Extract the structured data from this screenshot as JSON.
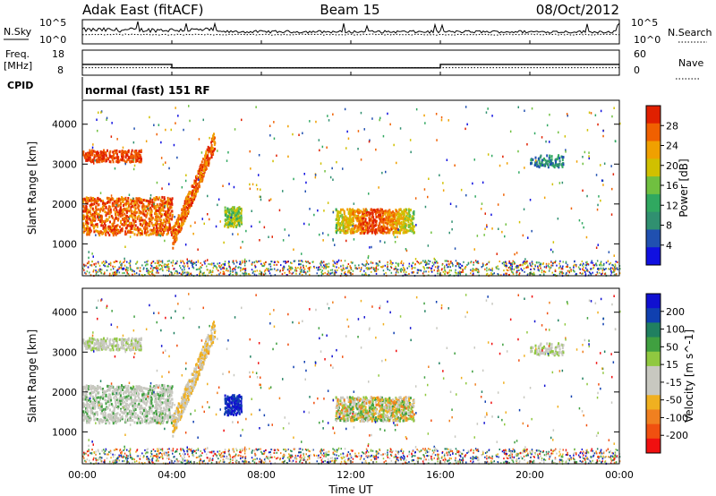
{
  "header": {
    "station": "Adak East (fitACF)",
    "beam": "Beam 15",
    "date": "08/Oct/2012"
  },
  "colors": {
    "power": [
      "#1010e0",
      "#2050b0",
      "#309070",
      "#30a860",
      "#70c040",
      "#d0c000",
      "#f0a000",
      "#f06000",
      "#e02000"
    ],
    "velocity": [
      "#f01010",
      "#f05010",
      "#f08020",
      "#f0b020",
      "#c8c8c0",
      "#c8c8c0",
      "#90c840",
      "#40a040",
      "#208060",
      "#1040b0",
      "#1010d0"
    ],
    "noise": "#000000"
  },
  "chart_data": [
    {
      "type": "line",
      "name": "noise",
      "left_label": "N.Sky",
      "right_label": "N.Search",
      "left_ticks": [
        "10^5",
        "10^0"
      ],
      "right_ticks": [
        "10^5",
        "10^0"
      ],
      "xlim": [
        0,
        24
      ]
    },
    {
      "type": "line",
      "name": "frequency",
      "left_label_1": "Freq.",
      "left_label_2": "[MHz]",
      "right_label": "Nave",
      "left_ticks": [
        18,
        8
      ],
      "right_ticks": [
        60,
        0
      ],
      "x": [
        0,
        4,
        4,
        16,
        16,
        24
      ],
      "freq_mhz": [
        11.2,
        11.2,
        9.5,
        9.5,
        11.2,
        11.2
      ],
      "nave": [
        18,
        18,
        18,
        18,
        18,
        18
      ],
      "ylim": [
        6,
        18
      ],
      "xlim": [
        0,
        24
      ]
    },
    {
      "type": "table",
      "name": "cpid",
      "label": "CPID",
      "value": "normal (fast) 151 RF"
    },
    {
      "type": "heatmap",
      "name": "power",
      "ylabel": "Slant Range [km]",
      "colorbar_label": "Power [dB]",
      "colorbar_ticks": [
        4,
        8,
        12,
        16,
        20,
        24,
        28
      ],
      "clim": [
        0,
        30
      ],
      "ylim": [
        200,
        4600
      ],
      "yticks": [
        1000,
        2000,
        3000,
        4000
      ],
      "xlim": [
        0,
        24
      ]
    },
    {
      "type": "heatmap",
      "name": "velocity",
      "ylabel": "Slant Range [km]",
      "colorbar_label": "Velocity [m s^-1]",
      "colorbar_ticks": [
        200,
        100,
        50,
        15,
        -15,
        -50,
        -100,
        -200
      ],
      "ylim": [
        200,
        4600
      ],
      "yticks": [
        1000,
        2000,
        3000,
        4000
      ],
      "xlim": [
        0,
        24
      ],
      "xticks": [
        "00:00",
        "04:00",
        "08:00",
        "12:00",
        "16:00",
        "20:00",
        "00:00"
      ],
      "xlabel": "Time UT"
    }
  ]
}
